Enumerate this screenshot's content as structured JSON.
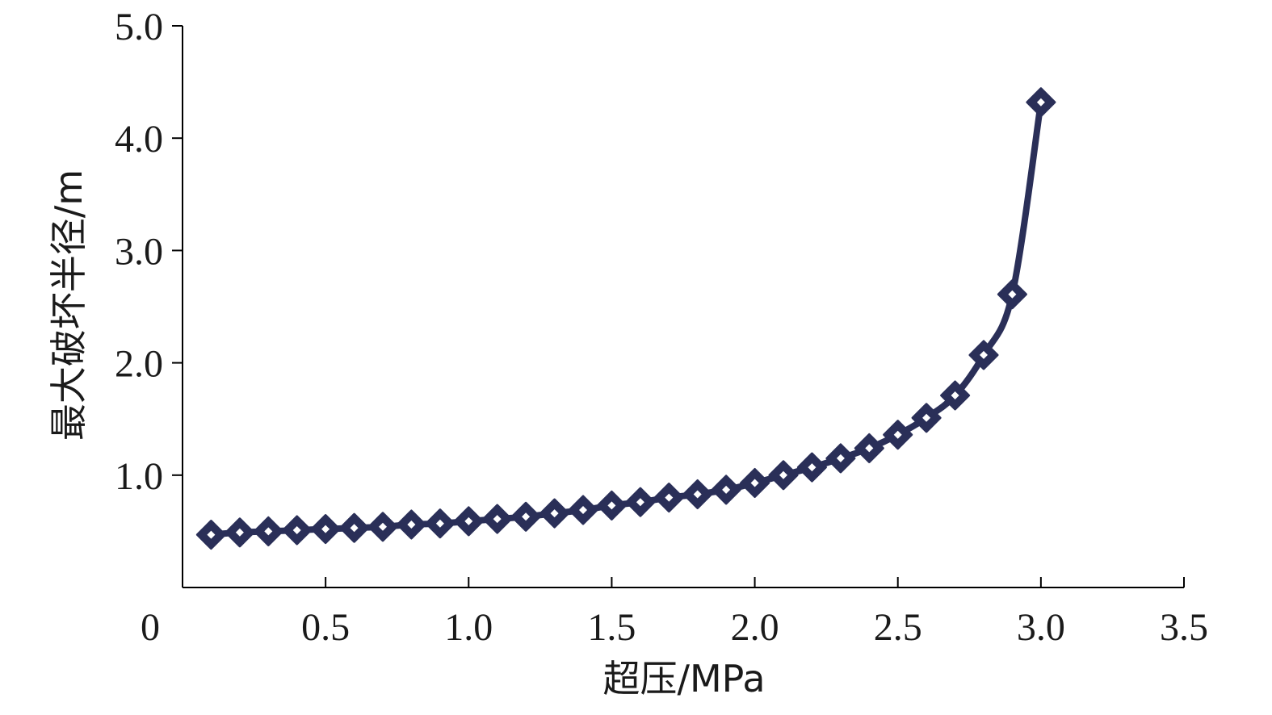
{
  "chart_data": {
    "type": "line",
    "title": "",
    "xlabel": "超压/MPa",
    "ylabel": "最大破坏半径/m",
    "xlim": [
      0,
      3.5
    ],
    "ylim": [
      0,
      5.0
    ],
    "x_ticks": [
      0.5,
      1.0,
      1.5,
      2.0,
      2.5,
      3.0,
      3.5
    ],
    "x_tick_labels": [
      "0.5",
      "1.0",
      "1.5",
      "2.0",
      "2.5",
      "3.0",
      "3.5"
    ],
    "y_ticks": [
      1.0,
      2.0,
      3.0,
      4.0,
      5.0
    ],
    "y_tick_labels": [
      "1.0",
      "2.0",
      "3.0",
      "4.0",
      "5.0"
    ],
    "origin_label": "0",
    "grid": false,
    "marker": "diamond",
    "series_color": "#2a2f58",
    "series": [
      {
        "x": [
          0.1,
          0.2,
          0.3,
          0.4,
          0.5,
          0.6,
          0.7,
          0.8,
          0.9,
          1.0,
          1.1,
          1.2,
          1.3,
          1.4,
          1.5,
          1.6,
          1.7,
          1.8,
          1.9,
          2.0,
          2.1,
          2.2,
          2.3,
          2.4,
          2.5,
          2.6,
          2.7,
          2.8,
          2.9,
          3.0
        ],
        "y": [
          0.47,
          0.49,
          0.5,
          0.51,
          0.52,
          0.53,
          0.54,
          0.56,
          0.57,
          0.59,
          0.61,
          0.63,
          0.66,
          0.69,
          0.73,
          0.76,
          0.8,
          0.83,
          0.87,
          0.93,
          1.0,
          1.07,
          1.15,
          1.24,
          1.36,
          1.51,
          1.71,
          2.07,
          2.61,
          4.32
        ]
      }
    ]
  }
}
